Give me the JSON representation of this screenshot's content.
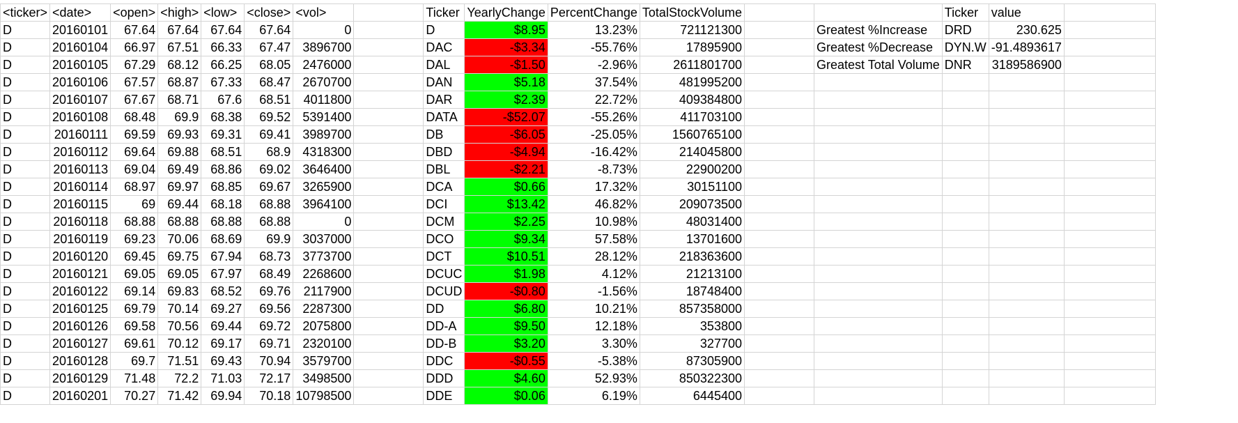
{
  "sheet": {
    "headers": {
      "stock": [
        "<ticker>",
        "<date>",
        "<open>",
        "<high>",
        "<low>",
        "<close>",
        "<vol>"
      ],
      "summary": [
        "Ticker",
        "YearlyChange",
        "PercentChange",
        "TotalStockVolume"
      ],
      "greatest": [
        "Ticker",
        "value"
      ]
    },
    "stock_rows": [
      [
        "D",
        "20160101",
        "67.64",
        "67.64",
        "67.64",
        "67.64",
        "0"
      ],
      [
        "D",
        "20160104",
        "66.97",
        "67.51",
        "66.33",
        "67.47",
        "3896700"
      ],
      [
        "D",
        "20160105",
        "67.29",
        "68.12",
        "66.25",
        "68.05",
        "2476000"
      ],
      [
        "D",
        "20160106",
        "67.57",
        "68.87",
        "67.33",
        "68.47",
        "2670700"
      ],
      [
        "D",
        "20160107",
        "67.67",
        "68.71",
        "67.6",
        "68.51",
        "4011800"
      ],
      [
        "D",
        "20160108",
        "68.48",
        "69.9",
        "68.38",
        "69.52",
        "5391400"
      ],
      [
        "D",
        "20160111",
        "69.59",
        "69.93",
        "69.31",
        "69.41",
        "3989700"
      ],
      [
        "D",
        "20160112",
        "69.64",
        "69.88",
        "68.51",
        "68.9",
        "4318300"
      ],
      [
        "D",
        "20160113",
        "69.04",
        "69.49",
        "68.86",
        "69.02",
        "3646400"
      ],
      [
        "D",
        "20160114",
        "68.97",
        "69.97",
        "68.85",
        "69.67",
        "3265900"
      ],
      [
        "D",
        "20160115",
        "69",
        "69.44",
        "68.18",
        "68.88",
        "3964100"
      ],
      [
        "D",
        "20160118",
        "68.88",
        "68.88",
        "68.88",
        "68.88",
        "0"
      ],
      [
        "D",
        "20160119",
        "69.23",
        "70.06",
        "68.69",
        "69.9",
        "3037000"
      ],
      [
        "D",
        "20160120",
        "69.45",
        "69.75",
        "67.94",
        "68.73",
        "3773700"
      ],
      [
        "D",
        "20160121",
        "69.05",
        "69.05",
        "67.97",
        "68.49",
        "2268600"
      ],
      [
        "D",
        "20160122",
        "69.14",
        "69.83",
        "68.52",
        "69.76",
        "2117900"
      ],
      [
        "D",
        "20160125",
        "69.79",
        "70.14",
        "69.27",
        "69.56",
        "2287300"
      ],
      [
        "D",
        "20160126",
        "69.58",
        "70.56",
        "69.44",
        "69.72",
        "2075800"
      ],
      [
        "D",
        "20160127",
        "69.61",
        "70.12",
        "69.17",
        "69.71",
        "2320100"
      ],
      [
        "D",
        "20160128",
        "69.7",
        "71.51",
        "69.43",
        "70.94",
        "3579700"
      ],
      [
        "D",
        "20160129",
        "71.48",
        "72.2",
        "71.03",
        "72.17",
        "3498500"
      ],
      [
        "D",
        "20160201",
        "70.27",
        "71.42",
        "69.94",
        "70.18",
        "10798500"
      ]
    ],
    "summary_rows": [
      [
        "D",
        "$8.95",
        "13.23%",
        "721121300"
      ],
      [
        "DAC",
        "-$3.34",
        "-55.76%",
        "17895900"
      ],
      [
        "DAL",
        "-$1.50",
        "-2.96%",
        "2611801700"
      ],
      [
        "DAN",
        "$5.18",
        "37.54%",
        "481995200"
      ],
      [
        "DAR",
        "$2.39",
        "22.72%",
        "409384800"
      ],
      [
        "DATA",
        "-$52.07",
        "-55.26%",
        "411703100"
      ],
      [
        "DB",
        "-$6.05",
        "-25.05%",
        "1560765100"
      ],
      [
        "DBD",
        "-$4.94",
        "-16.42%",
        "214045800"
      ],
      [
        "DBL",
        "-$2.21",
        "-8.73%",
        "22900200"
      ],
      [
        "DCA",
        "$0.66",
        "17.32%",
        "30151100"
      ],
      [
        "DCI",
        "$13.42",
        "46.82%",
        "209073500"
      ],
      [
        "DCM",
        "$2.25",
        "10.98%",
        "48031400"
      ],
      [
        "DCO",
        "$9.34",
        "57.58%",
        "13701600"
      ],
      [
        "DCT",
        "$10.51",
        "28.12%",
        "218363600"
      ],
      [
        "DCUC",
        "$1.98",
        "4.12%",
        "21213100"
      ],
      [
        "DCUD",
        "-$0.80",
        "-1.56%",
        "18748400"
      ],
      [
        "DD",
        "$6.80",
        "10.21%",
        "857358000"
      ],
      [
        "DD-A",
        "$9.50",
        "12.18%",
        "353800"
      ],
      [
        "DD-B",
        "$3.20",
        "3.30%",
        "327700"
      ],
      [
        "DDC",
        "-$0.55",
        "-5.38%",
        "87305900"
      ],
      [
        "DDD",
        "$4.60",
        "52.93%",
        "850322300"
      ],
      [
        "DDE",
        "$0.06",
        "6.19%",
        "6445400"
      ]
    ],
    "greatest_rows": [
      [
        "Greatest %Increase",
        "DRD",
        "230.625"
      ],
      [
        "Greatest %Decrease",
        "DYN.W",
        "-91.4893617"
      ],
      [
        "Greatest Total Volume",
        "DNR",
        "3189586900"
      ]
    ],
    "colors": {
      "positive_fill": "#00ff00",
      "negative_fill": "#ff0000",
      "gridline": "#d4d4d4"
    }
  }
}
